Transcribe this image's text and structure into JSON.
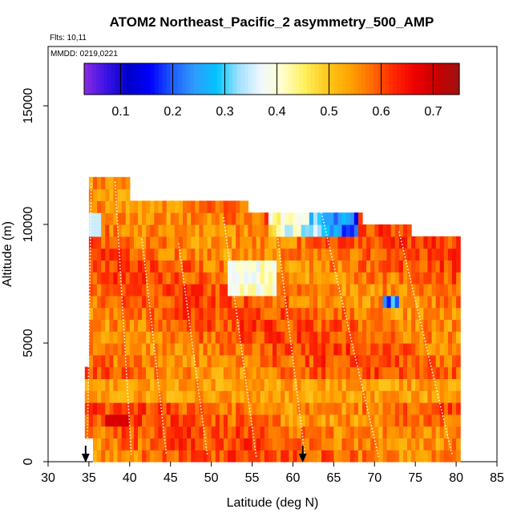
{
  "chart_data": {
    "type": "heatmap",
    "title": "ATOM2 Northeast_Pacific_2 asymmetry_500_AMP",
    "flights_label": "Flts: 10,11",
    "dates_label": "MMDD: 0219,0221",
    "xlabel": "Latitude (deg N)",
    "ylabel": "Altitude (m)",
    "xlim": [
      30,
      85
    ],
    "ylim": [
      0,
      17500
    ],
    "xticks": [
      "30",
      "35",
      "40",
      "45",
      "50",
      "55",
      "60",
      "65",
      "70",
      "75",
      "80",
      "85"
    ],
    "yticks": [
      "0",
      "5000",
      "10000",
      "15000"
    ],
    "colorbar": {
      "range": [
        0.03,
        0.75
      ],
      "ticks": [
        "0.1",
        "0.2",
        "0.3",
        "0.4",
        "0.5",
        "0.6",
        "0.7"
      ],
      "colors": [
        "#8a2be2",
        "#3b13e6",
        "#0000c8",
        "#0000ff",
        "#1e5cff",
        "#2f9bff",
        "#00c4ff",
        "#9fe0ff",
        "#f0f8ff",
        "#ffffc8",
        "#ffef5a",
        "#ffc81e",
        "#ffa500",
        "#ff6e00",
        "#ff2800",
        "#ee0000",
        "#c80000",
        "#a01010"
      ]
    },
    "markers": [
      {
        "lat": 34.6,
        "label": "arrow"
      },
      {
        "lat": 61.2,
        "label": "arrow"
      }
    ],
    "profiles": [
      {
        "lat_start": 34.8,
        "lat_end": 35.3,
        "alt_start": 600,
        "alt_end": 11800
      },
      {
        "lat_start": 38.2,
        "lat_end": 40.2,
        "alt_start": 11800,
        "alt_end": 300
      },
      {
        "lat_start": 41.5,
        "lat_end": 44.5,
        "alt_start": 9400,
        "alt_end": 300
      },
      {
        "lat_start": 46.0,
        "lat_end": 49.5,
        "alt_start": 9200,
        "alt_end": 300
      },
      {
        "lat_start": 51.5,
        "lat_end": 55.5,
        "alt_start": 10300,
        "alt_end": 200
      },
      {
        "lat_start": 58.0,
        "lat_end": 61.5,
        "alt_start": 9800,
        "alt_end": 200
      },
      {
        "lat_start": 63.5,
        "lat_end": 70.5,
        "alt_start": 10500,
        "alt_end": 200
      },
      {
        "lat_start": 73.0,
        "lat_end": 79.5,
        "alt_start": 9700,
        "alt_end": 300
      }
    ]
  }
}
